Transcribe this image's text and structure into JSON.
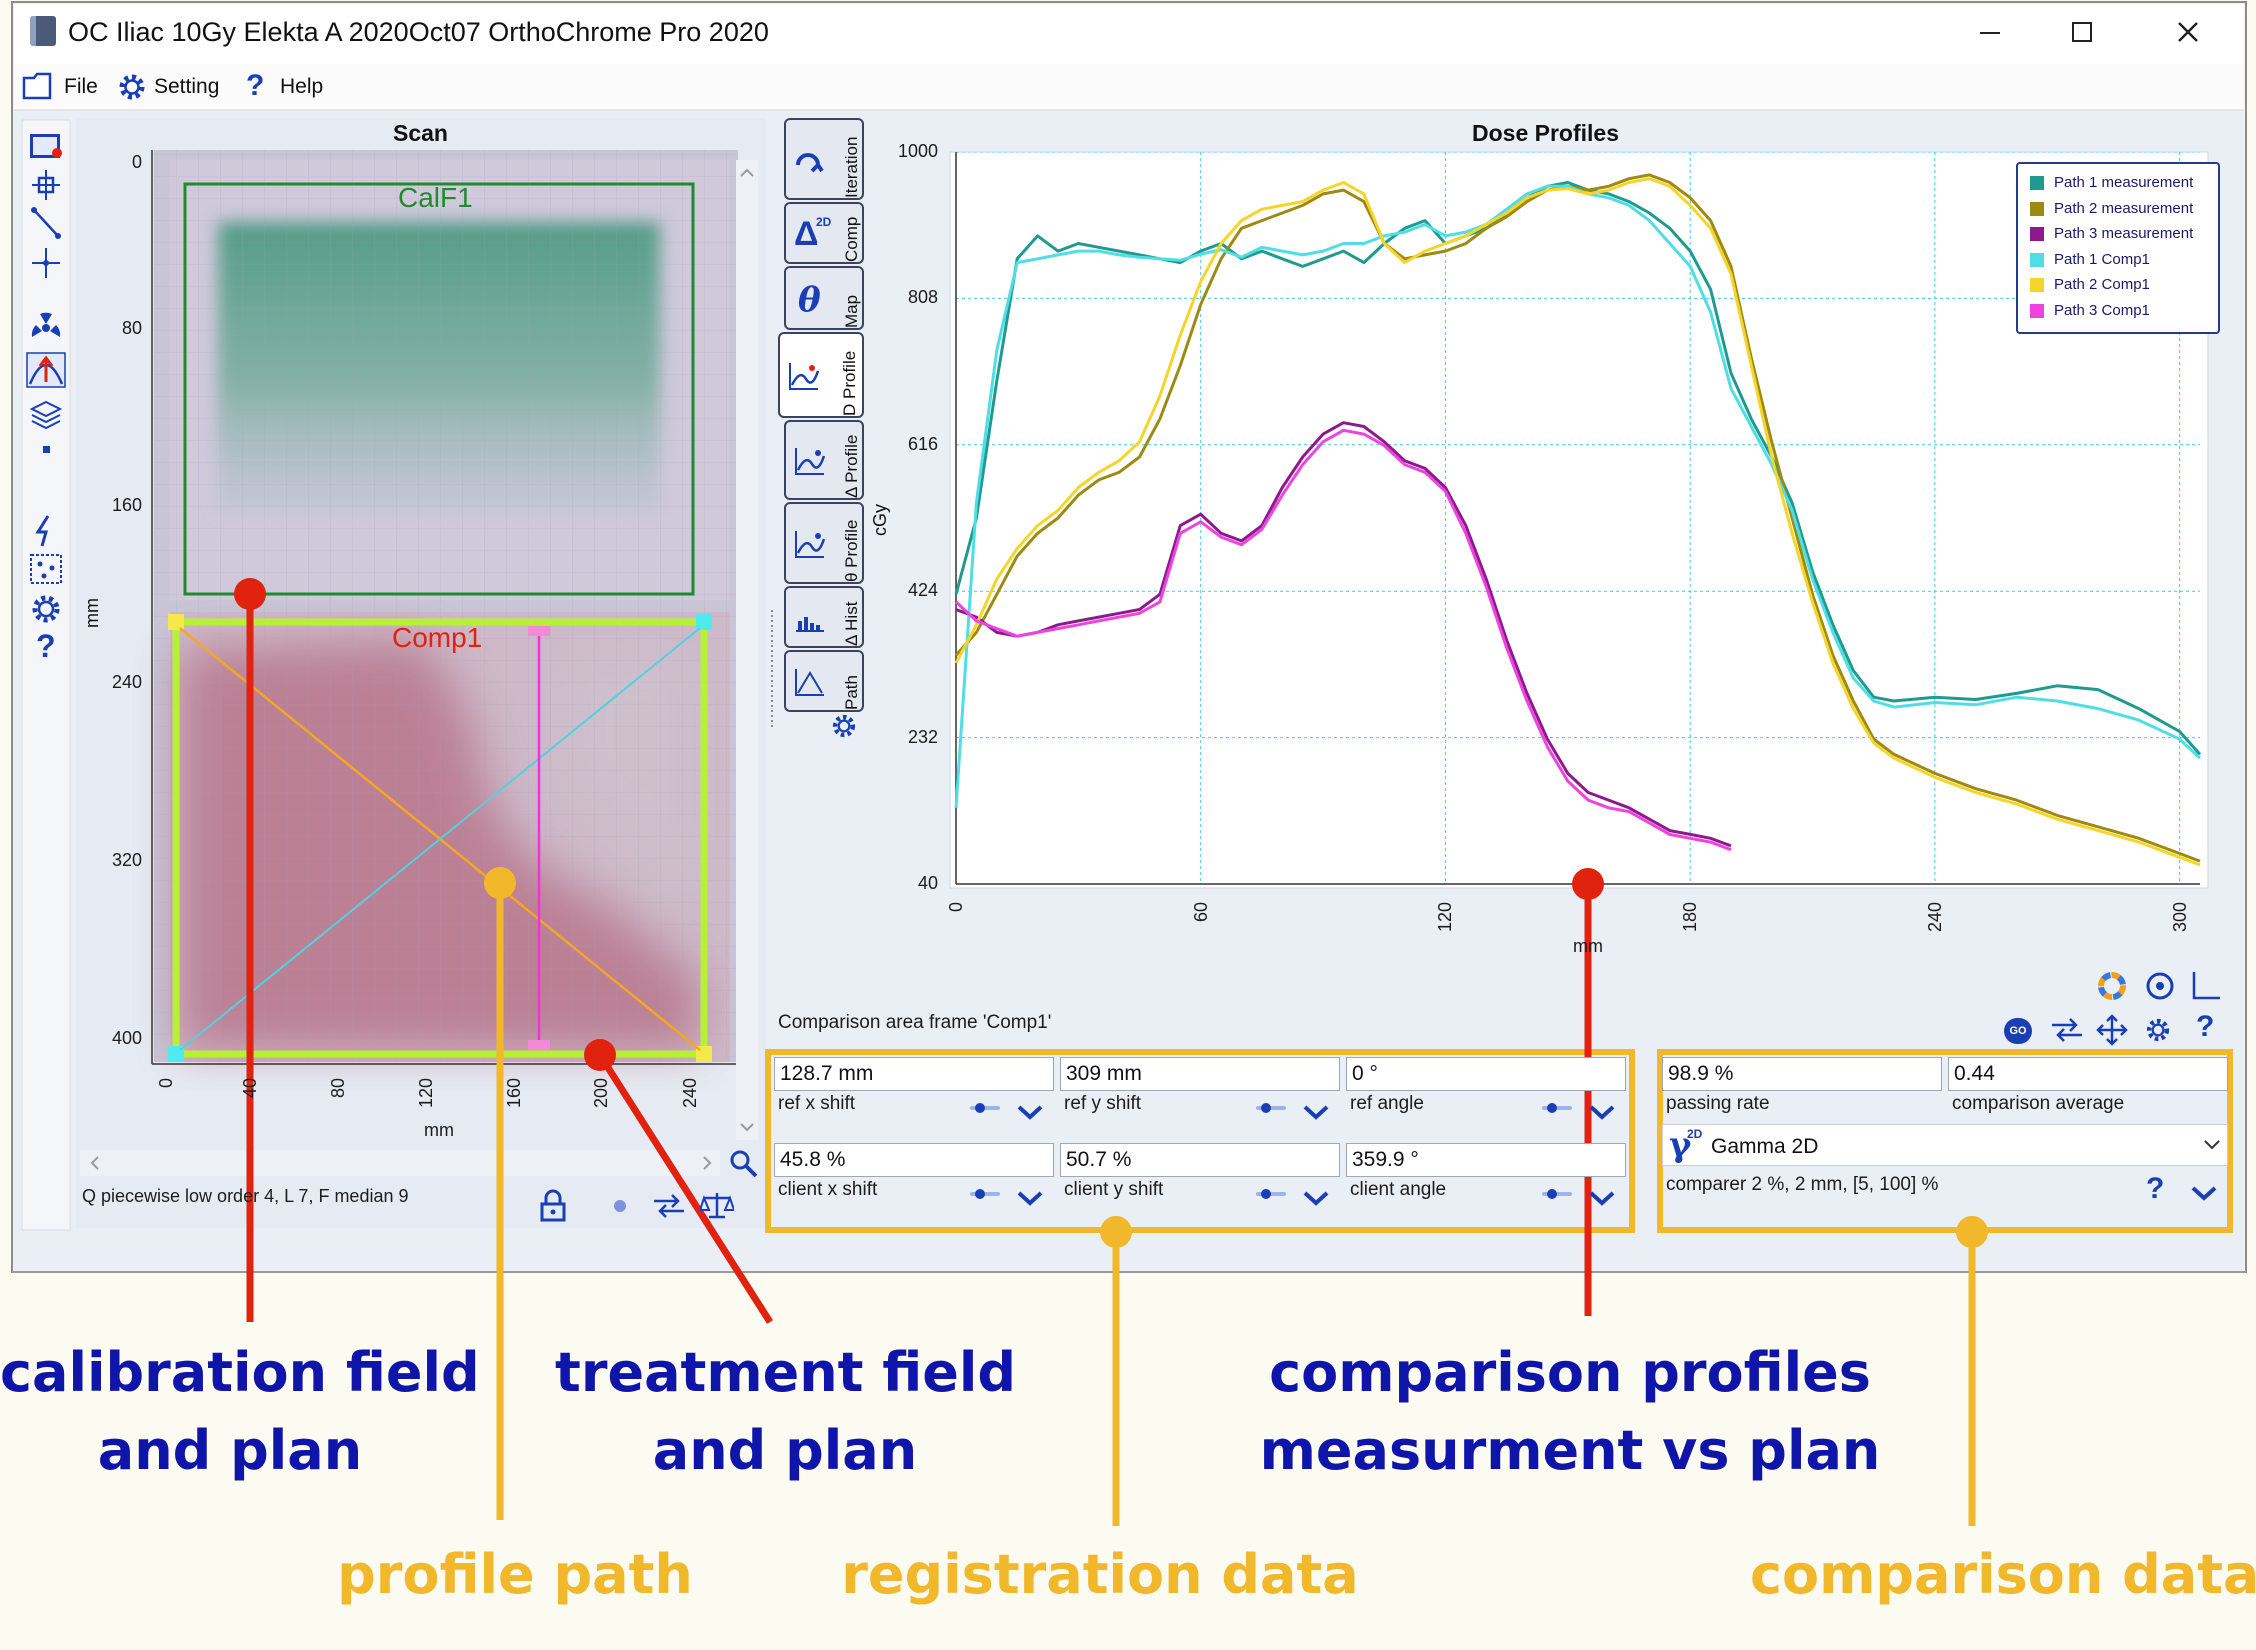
{
  "window": {
    "title": "OC Iliac 10Gy Elekta A  2020Oct07   OrthoChrome Pro 2020"
  },
  "menu": {
    "items": [
      "File",
      "Setting",
      "Help"
    ]
  },
  "scan_panel": {
    "title": "Scan",
    "axis_label": "mm",
    "y_ticks": [
      "0",
      "80",
      "160",
      "240",
      "320",
      "400"
    ],
    "x_ticks": [
      "0",
      "40",
      "80",
      "120",
      "160",
      "200",
      "240"
    ],
    "calibration_frame_label": "CalF1",
    "comparison_frame_label": "Comp1",
    "status_text": "Q piecewise low order  4, L 7, F median 9"
  },
  "side_tabs": [
    "Iteration",
    "Comp",
    "Map",
    "D Profile",
    "Δ Profile",
    "θ Profile",
    "Δ Hist",
    "Path"
  ],
  "side_tab_glyphs": {
    "comp": "Δ",
    "comp_sup": "2D",
    "map": "θ"
  },
  "chart_data": {
    "type": "line",
    "title": "Dose Profiles",
    "xlabel": "mm",
    "ylabel": "cGy",
    "xlim": [
      0,
      305
    ],
    "ylim": [
      40,
      1000
    ],
    "y_ticks": [
      "40",
      "232",
      "424",
      "616",
      "808",
      "1000"
    ],
    "x_ticks": [
      "0",
      "60",
      "120",
      "180",
      "240",
      "300"
    ],
    "grid": true,
    "legend_position": "top-right",
    "series": [
      {
        "name": "Path 1 measurement",
        "color": "#1f9a8e",
        "x": [
          0,
          5,
          10,
          15,
          20,
          25,
          30,
          35,
          40,
          45,
          50,
          55,
          60,
          65,
          70,
          75,
          80,
          85,
          90,
          95,
          100,
          105,
          110,
          115,
          120,
          125,
          130,
          135,
          140,
          145,
          150,
          155,
          160,
          165,
          170,
          175,
          180,
          185,
          190,
          195,
          200,
          205,
          210,
          215,
          220,
          225,
          230,
          240,
          250,
          260,
          270,
          280,
          290,
          300,
          305
        ],
        "y": [
          420,
          520,
          700,
          860,
          890,
          870,
          880,
          875,
          870,
          865,
          860,
          855,
          870,
          880,
          860,
          870,
          860,
          850,
          860,
          870,
          855,
          880,
          900,
          910,
          880,
          890,
          900,
          920,
          940,
          955,
          960,
          950,
          945,
          935,
          920,
          900,
          870,
          820,
          710,
          650,
          600,
          540,
          450,
          380,
          320,
          285,
          280,
          285,
          282,
          290,
          300,
          295,
          270,
          240,
          210
        ]
      },
      {
        "name": "Path 2 measurement",
        "color": "#9d8a12",
        "x": [
          0,
          5,
          10,
          15,
          20,
          25,
          30,
          35,
          40,
          45,
          50,
          55,
          60,
          65,
          70,
          75,
          80,
          85,
          90,
          95,
          100,
          105,
          110,
          115,
          120,
          125,
          130,
          135,
          140,
          145,
          150,
          155,
          160,
          165,
          170,
          175,
          180,
          185,
          190,
          195,
          200,
          205,
          210,
          215,
          220,
          225,
          230,
          240,
          250,
          260,
          270,
          280,
          290,
          300,
          305
        ],
        "y": [
          340,
          370,
          420,
          470,
          500,
          520,
          550,
          570,
          580,
          600,
          650,
          720,
          800,
          860,
          900,
          910,
          920,
          930,
          945,
          950,
          935,
          880,
          860,
          865,
          870,
          880,
          900,
          915,
          935,
          950,
          955,
          950,
          955,
          965,
          970,
          960,
          940,
          910,
          850,
          730,
          620,
          520,
          420,
          340,
          280,
          230,
          210,
          185,
          165,
          150,
          130,
          115,
          100,
          80,
          70
        ]
      },
      {
        "name": "Path 3 measurement",
        "color": "#8c1a8c",
        "x": [
          0,
          5,
          10,
          15,
          20,
          25,
          30,
          35,
          40,
          45,
          50,
          55,
          60,
          65,
          70,
          75,
          80,
          85,
          90,
          95,
          100,
          105,
          110,
          115,
          120,
          125,
          130,
          135,
          140,
          145,
          150,
          155,
          160,
          165,
          170,
          175,
          180,
          185,
          190
        ],
        "y": [
          400,
          390,
          370,
          365,
          370,
          380,
          385,
          390,
          395,
          400,
          420,
          510,
          525,
          500,
          490,
          510,
          560,
          600,
          630,
          645,
          640,
          620,
          595,
          585,
          560,
          510,
          440,
          360,
          290,
          230,
          185,
          160,
          150,
          140,
          125,
          110,
          105,
          100,
          90
        ]
      },
      {
        "name": "Path 1 Comp1",
        "color": "#4fdde6",
        "x": [
          0,
          5,
          10,
          15,
          20,
          25,
          30,
          35,
          40,
          45,
          50,
          55,
          60,
          65,
          70,
          75,
          80,
          85,
          90,
          95,
          100,
          105,
          110,
          115,
          120,
          125,
          130,
          135,
          140,
          145,
          150,
          155,
          160,
          165,
          170,
          175,
          180,
          185,
          190,
          195,
          200,
          205,
          210,
          215,
          220,
          225,
          230,
          240,
          250,
          260,
          270,
          280,
          290,
          300,
          305
        ],
        "y": [
          140,
          540,
          740,
          855,
          860,
          865,
          870,
          870,
          865,
          862,
          860,
          858,
          866,
          872,
          862,
          875,
          870,
          865,
          870,
          880,
          880,
          890,
          895,
          905,
          890,
          895,
          905,
          925,
          945,
          955,
          955,
          945,
          940,
          930,
          910,
          880,
          850,
          790,
          690,
          640,
          590,
          530,
          440,
          370,
          310,
          280,
          272,
          278,
          275,
          285,
          280,
          270,
          255,
          230,
          205
        ]
      },
      {
        "name": "Path 2 Comp1",
        "color": "#f5d52a",
        "x": [
          0,
          5,
          10,
          15,
          20,
          25,
          30,
          35,
          40,
          45,
          50,
          55,
          60,
          65,
          70,
          75,
          80,
          85,
          90,
          95,
          100,
          105,
          110,
          115,
          120,
          125,
          130,
          135,
          140,
          145,
          150,
          155,
          160,
          165,
          170,
          175,
          180,
          185,
          190,
          195,
          200,
          205,
          210,
          215,
          220,
          225,
          230,
          240,
          250,
          260,
          270,
          280,
          290,
          300,
          305
        ],
        "y": [
          330,
          380,
          440,
          480,
          510,
          530,
          560,
          580,
          595,
          620,
          680,
          760,
          830,
          880,
          910,
          925,
          930,
          935,
          950,
          960,
          945,
          880,
          855,
          870,
          880,
          890,
          905,
          920,
          940,
          950,
          952,
          945,
          950,
          960,
          965,
          955,
          930,
          900,
          840,
          720,
          600,
          500,
          410,
          330,
          270,
          225,
          205,
          180,
          160,
          145,
          125,
          110,
          95,
          75,
          65
        ]
      },
      {
        "name": "Path 3 Comp1",
        "color": "#ee44dd",
        "x": [
          0,
          5,
          10,
          15,
          20,
          25,
          30,
          35,
          40,
          45,
          50,
          55,
          60,
          65,
          70,
          75,
          80,
          85,
          90,
          95,
          100,
          105,
          110,
          115,
          120,
          125,
          130,
          135,
          140,
          145,
          150,
          155,
          160,
          165,
          170,
          175,
          180,
          185,
          190
        ],
        "y": [
          410,
          385,
          375,
          365,
          370,
          375,
          380,
          385,
          390,
          395,
          410,
          500,
          515,
          495,
          485,
          505,
          550,
          590,
          620,
          635,
          630,
          615,
          590,
          580,
          555,
          500,
          430,
          350,
          280,
          220,
          175,
          150,
          140,
          135,
          120,
          105,
          100,
          95,
          85
        ]
      }
    ]
  },
  "comparison": {
    "caption": "Comparison area frame 'Comp1'",
    "registration": {
      "ref_x_shift": {
        "value": "128.7 mm",
        "label": "ref x shift"
      },
      "ref_y_shift": {
        "value": "309 mm",
        "label": "ref y shift"
      },
      "ref_angle": {
        "value": "0 °",
        "label": "ref angle"
      },
      "client_x_shift": {
        "value": "45.8 %",
        "label": "client x shift"
      },
      "client_y_shift": {
        "value": "50.7 %",
        "label": "client y shift"
      },
      "client_angle": {
        "value": "359.9 °",
        "label": "client angle"
      }
    },
    "result": {
      "passing_rate": {
        "value": "98.9 %",
        "label": "passing rate"
      },
      "comparison_average": {
        "value": "0.44",
        "label": "comparison average"
      },
      "method": "Gamma 2D",
      "method_glyph": "γ",
      "method_glyph_sup": "2D",
      "comparer": "comparer 2 %, 2 mm, [5, 100] %"
    }
  },
  "annotations": {
    "calibration": [
      "calibration field",
      "and plan"
    ],
    "treatment": [
      "treatment field",
      "and plan"
    ],
    "profiles": [
      "comparison profiles",
      "measurment vs plan"
    ],
    "profile_path": "profile path",
    "registration": "registration data",
    "comparison": "comparison data"
  },
  "colors": {
    "annotation_blue": "#0f15a8",
    "annotation_gold": "#f0b82a",
    "annotation_red": "#e0220e",
    "ui_blue": "#1a3fb5"
  }
}
